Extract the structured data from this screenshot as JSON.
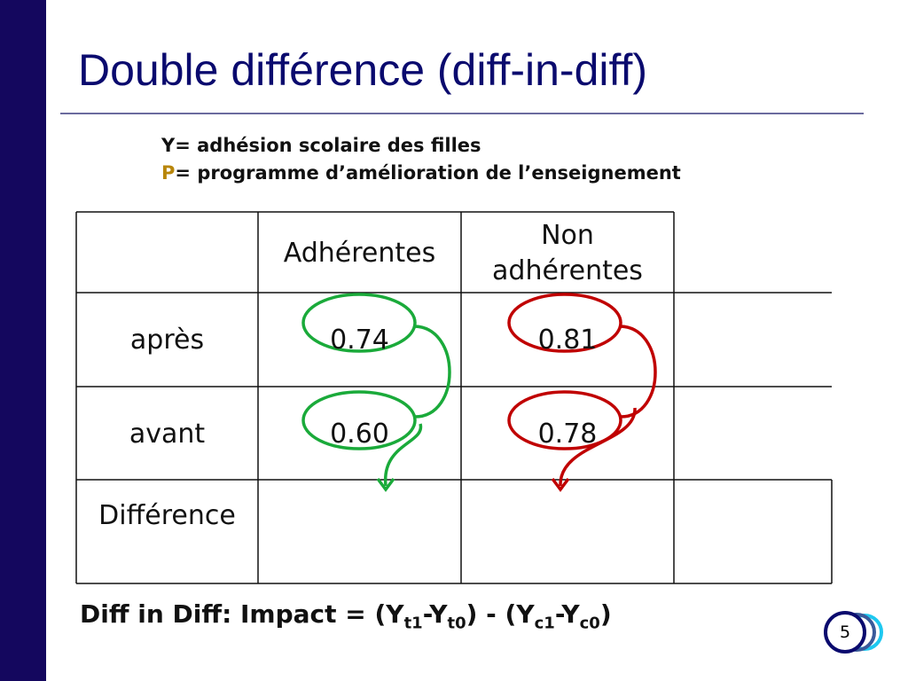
{
  "title": "Double différence (diff-in-diff)",
  "definitions": {
    "y_key": "Y",
    "y_text": "= adhésion scolaire des filles",
    "p_key": "P",
    "p_text": "= programme d’amélioration de l’enseignement"
  },
  "table": {
    "headers": [
      "",
      "Adhérentes",
      "Non adhérentes",
      ""
    ],
    "rows": [
      {
        "label": "après",
        "values": [
          "0.74",
          "0.81",
          ""
        ]
      },
      {
        "label": "avant",
        "values": [
          "0.60",
          "0.78",
          ""
        ]
      },
      {
        "label": "Différence",
        "values": [
          "",
          "",
          ""
        ]
      }
    ]
  },
  "formula": {
    "prefix": "Diff in Diff: Impact = (Y",
    "s1": "t1",
    "m1": "-Y",
    "s2": "t0",
    "mid": ") - (Y",
    "s3": "c1",
    "m2": "-Y",
    "s4": "c0",
    "end": ")"
  },
  "page_number": "5",
  "colors": {
    "sidebar": "#14075e",
    "title": "#0a0a6e",
    "treated": "#1aaa3a",
    "control": "#c00000",
    "p_key": "#b8860b"
  }
}
